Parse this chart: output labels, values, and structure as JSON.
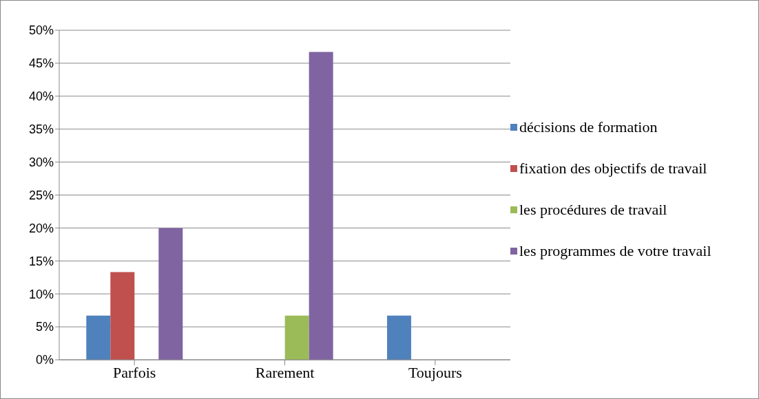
{
  "chart_data": {
    "type": "bar",
    "categories": [
      "Parfois",
      "Rarement",
      "Toujours"
    ],
    "series": [
      {
        "name": "décisions de formation",
        "color": "#4f81bd",
        "values": [
          6.7,
          0,
          6.7
        ]
      },
      {
        "name": "fixation des objectifs de travail",
        "color": "#c0504d",
        "values": [
          13.3,
          0,
          0
        ]
      },
      {
        "name": "les procédures de travail",
        "color": "#9bbb59",
        "values": [
          0,
          6.7,
          0
        ]
      },
      {
        "name": "les programmes de votre travail",
        "color": "#8064a2",
        "values": [
          20,
          46.7,
          0
        ]
      }
    ],
    "ylim": [
      0,
      50
    ],
    "yticks": [
      {
        "value": 0,
        "label": "0%"
      },
      {
        "value": 5,
        "label": "5%"
      },
      {
        "value": 10,
        "label": "10%"
      },
      {
        "value": 15,
        "label": "15%"
      },
      {
        "value": 20,
        "label": "20%"
      },
      {
        "value": 25,
        "label": "25%"
      },
      {
        "value": 30,
        "label": "30%"
      },
      {
        "value": 35,
        "label": "35%"
      },
      {
        "value": 40,
        "label": "40%"
      },
      {
        "value": 45,
        "label": "45%"
      },
      {
        "value": 50,
        "label": "50%"
      }
    ],
    "grid": "y",
    "legend": "right"
  }
}
